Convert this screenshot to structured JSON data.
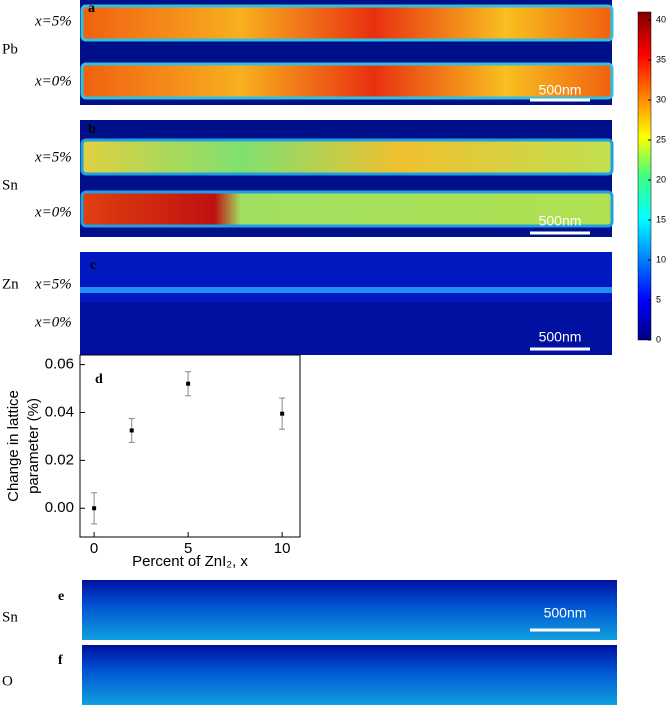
{
  "panels": [
    {
      "label": "a",
      "element": "Pb",
      "rows": [
        "x=5%",
        "x=0%"
      ],
      "scale": "500nm"
    },
    {
      "label": "b",
      "element": "Sn",
      "rows": [
        "x=5%",
        "x=0%"
      ],
      "scale": "500nm"
    },
    {
      "label": "c",
      "element": "Zn",
      "rows": [
        "x=5%",
        "x=0%"
      ],
      "scale": "500nm"
    },
    {
      "label": "e",
      "element": "Sn",
      "scale": "500nm"
    },
    {
      "label": "f",
      "element": "O"
    }
  ],
  "colorbar": {
    "lim": [
      0,
      41
    ],
    "ticks": [
      0,
      5,
      10,
      15,
      20,
      25,
      30,
      35,
      40
    ]
  },
  "chart_data": {
    "type": "scatter",
    "label": "d",
    "x": [
      0,
      2,
      5,
      10
    ],
    "values": [
      0.0,
      0.0325,
      0.052,
      0.0395
    ],
    "errors": [
      0.0065,
      0.005,
      0.005,
      0.0065
    ],
    "color": "#000000",
    "xlabel": "Percent of ZnI₂, x",
    "ylabel": [
      "Change in lattice",
      "parameter (%)"
    ],
    "xlim": [
      -0.75,
      10.95
    ],
    "ylim": [
      -0.012,
      0.064
    ],
    "xticks": [
      0,
      5,
      10
    ],
    "yticks": [
      {
        "value": 0,
        "label": "0.00"
      },
      {
        "value": 0.02,
        "label": "0.02"
      },
      {
        "value": 0.04,
        "label": "0.04"
      },
      {
        "value": 0.06,
        "label": "0.06"
      }
    ]
  }
}
